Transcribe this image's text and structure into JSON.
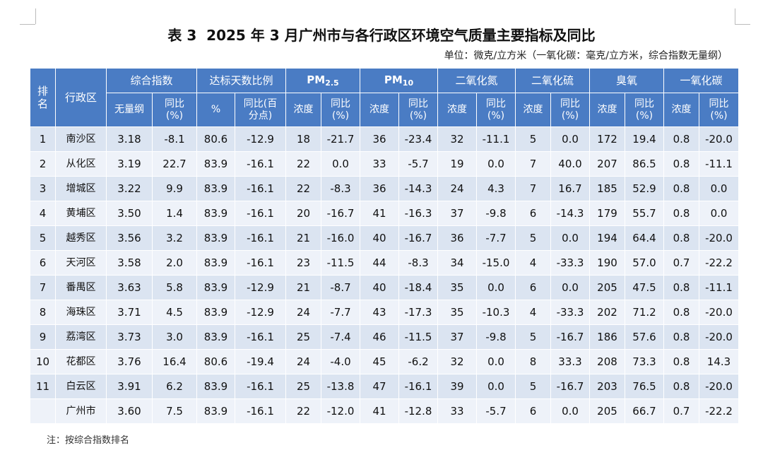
{
  "header": {
    "title": "表 3  2025 年 3 月广州市与各行政区环境空气质量主要指标及同比",
    "unit": "单位：微克/立方米（一氧化碳：毫克/立方米，综合指数无量纲）"
  },
  "table": {
    "rank_header": "排名",
    "district_header": "行政区",
    "groups": [
      {
        "label": "综合指数",
        "cols": [
          [
            "无量纲"
          ],
          [
            "同比",
            "(%)"
          ]
        ]
      },
      {
        "label": "达标天数比例",
        "cols": [
          [
            "%"
          ],
          [
            "同比(百",
            "分点)"
          ]
        ]
      },
      {
        "label": "PM",
        "sub": "2.5",
        "cols": [
          [
            "浓度"
          ],
          [
            "同比",
            "(%)"
          ]
        ]
      },
      {
        "label": "PM",
        "sub": "10",
        "cols": [
          [
            "浓度"
          ],
          [
            "同比",
            "(%)"
          ]
        ]
      },
      {
        "label": "二氧化氮",
        "cols": [
          [
            "浓度"
          ],
          [
            "同比",
            "(%)"
          ]
        ]
      },
      {
        "label": "二氧化硫",
        "cols": [
          [
            "浓度"
          ],
          [
            "同比",
            "(%)"
          ]
        ]
      },
      {
        "label": "臭氧",
        "cols": [
          [
            "浓度"
          ],
          [
            "同比",
            "(%)"
          ]
        ]
      },
      {
        "label": "一氧化碳",
        "cols": [
          [
            "浓度"
          ],
          [
            "同比",
            "(%)"
          ]
        ]
      }
    ],
    "rows": [
      {
        "rank": "1",
        "district": "南沙区",
        "values": [
          "3.18",
          "-8.1",
          "80.6",
          "-12.9",
          "18",
          "-21.7",
          "36",
          "-23.4",
          "32",
          "-11.1",
          "5",
          "0.0",
          "172",
          "19.4",
          "0.8",
          "-20.0"
        ]
      },
      {
        "rank": "2",
        "district": "从化区",
        "values": [
          "3.19",
          "22.7",
          "83.9",
          "-16.1",
          "22",
          "0.0",
          "33",
          "-5.7",
          "19",
          "0.0",
          "7",
          "40.0",
          "207",
          "86.5",
          "0.8",
          "-11.1"
        ]
      },
      {
        "rank": "3",
        "district": "增城区",
        "values": [
          "3.22",
          "9.9",
          "83.9",
          "-16.1",
          "22",
          "-8.3",
          "36",
          "-14.3",
          "24",
          "4.3",
          "7",
          "16.7",
          "185",
          "52.9",
          "0.8",
          "0.0"
        ]
      },
      {
        "rank": "4",
        "district": "黄埔区",
        "values": [
          "3.50",
          "1.4",
          "83.9",
          "-16.1",
          "20",
          "-16.7",
          "41",
          "-16.3",
          "37",
          "-9.8",
          "6",
          "-14.3",
          "179",
          "55.7",
          "0.8",
          "0.0"
        ]
      },
      {
        "rank": "5",
        "district": "越秀区",
        "values": [
          "3.56",
          "3.2",
          "83.9",
          "-16.1",
          "21",
          "-16.0",
          "40",
          "-16.7",
          "36",
          "-7.7",
          "5",
          "0.0",
          "194",
          "64.4",
          "0.8",
          "-20.0"
        ]
      },
      {
        "rank": "6",
        "district": "天河区",
        "values": [
          "3.58",
          "2.0",
          "83.9",
          "-16.1",
          "23",
          "-11.5",
          "44",
          "-8.3",
          "34",
          "-15.0",
          "4",
          "-33.3",
          "190",
          "57.0",
          "0.7",
          "-22.2"
        ]
      },
      {
        "rank": "7",
        "district": "番禺区",
        "values": [
          "3.63",
          "5.8",
          "83.9",
          "-12.9",
          "21",
          "-8.7",
          "40",
          "-18.4",
          "35",
          "0.0",
          "6",
          "0.0",
          "205",
          "47.5",
          "0.8",
          "-11.1"
        ]
      },
      {
        "rank": "8",
        "district": "海珠区",
        "values": [
          "3.71",
          "4.5",
          "83.9",
          "-12.9",
          "24",
          "-7.7",
          "43",
          "-17.3",
          "35",
          "-10.3",
          "4",
          "-33.3",
          "202",
          "71.2",
          "0.8",
          "-20.0"
        ]
      },
      {
        "rank": "9",
        "district": "荔湾区",
        "values": [
          "3.73",
          "3.0",
          "83.9",
          "-16.1",
          "25",
          "-7.4",
          "46",
          "-11.5",
          "37",
          "-9.8",
          "5",
          "-16.7",
          "186",
          "57.6",
          "0.8",
          "-20.0"
        ]
      },
      {
        "rank": "10",
        "district": "花都区",
        "values": [
          "3.76",
          "16.4",
          "80.6",
          "-19.4",
          "24",
          "-4.0",
          "45",
          "-6.2",
          "32",
          "0.0",
          "8",
          "33.3",
          "208",
          "73.3",
          "0.8",
          "14.3"
        ]
      },
      {
        "rank": "11",
        "district": "白云区",
        "values": [
          "3.91",
          "6.2",
          "83.9",
          "-16.1",
          "25",
          "-13.8",
          "47",
          "-16.1",
          "39",
          "0.0",
          "5",
          "-16.7",
          "203",
          "76.5",
          "0.8",
          "-20.0"
        ]
      },
      {
        "rank": null,
        "district": "广州市",
        "values": [
          "3.60",
          "7.5",
          "83.9",
          "-16.1",
          "22",
          "-12.0",
          "41",
          "-12.8",
          "33",
          "-5.7",
          "6",
          "0.0",
          "205",
          "66.7",
          "0.7",
          "-22.2"
        ]
      }
    ]
  },
  "note": "注：按综合指数排名"
}
